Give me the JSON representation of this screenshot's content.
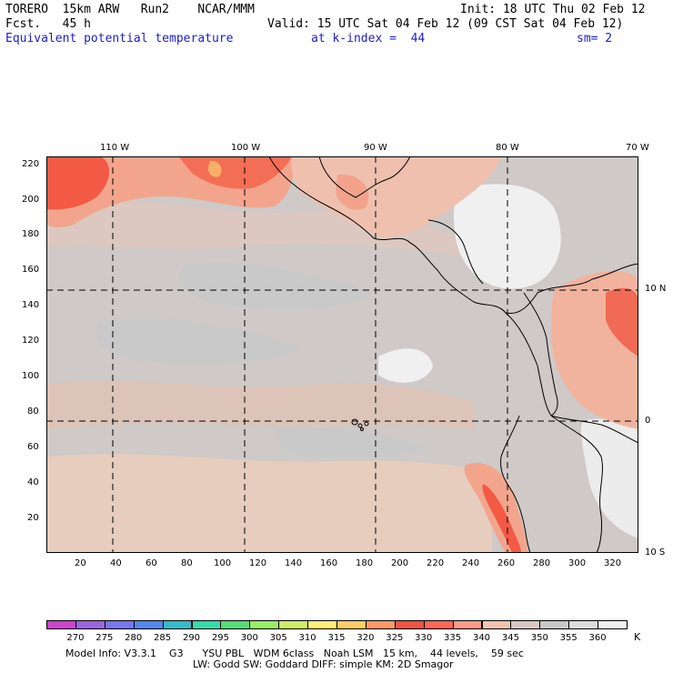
{
  "header": {
    "model": "TORERO  15km ARW   Run2    NCAR/MMM",
    "init": "Init: 18 UTC Thu 02 Feb 12",
    "fcst": "Fcst.   45 h",
    "valid": "Valid: 15 UTC Sat 04 Feb 12 (09 CST Sat 04 Feb 12)",
    "field": "Equivalent potential temperature",
    "kindex": "at k-index =  44",
    "sm": "sm= 2"
  },
  "top_axis": [
    "110 W",
    "100 W",
    "90 W",
    "80 W",
    "70 W"
  ],
  "right_axis": [
    "10 N",
    "0",
    "10 S"
  ],
  "left_axis": [
    "220",
    "200",
    "180",
    "160",
    "140",
    "120",
    "100",
    "80",
    "60",
    "40",
    "20"
  ],
  "bottom_axis": [
    "20",
    "40",
    "60",
    "80",
    "100",
    "120",
    "140",
    "160",
    "180",
    "200",
    "220",
    "240",
    "260",
    "280",
    "300",
    "320"
  ],
  "colorbar": {
    "colors": [
      "#cc44cc",
      "#9966dd",
      "#7777ee",
      "#5588ee",
      "#33bbcc",
      "#33ddaa",
      "#55dd77",
      "#99ee66",
      "#ccee66",
      "#ffee77",
      "#ffcc66",
      "#ff9966",
      "#ee5544",
      "#ff6655",
      "#ff9988",
      "#f2c4b0",
      "#d8c8c4",
      "#c8c8c8",
      "#dddddd",
      "#f0f0f0"
    ],
    "labels": [
      "270",
      "275",
      "280",
      "285",
      "290",
      "295",
      "300",
      "305",
      "310",
      "315",
      "320",
      "325",
      "330",
      "335",
      "340",
      "345",
      "350",
      "355",
      "360"
    ],
    "unit": "K"
  },
  "footer": {
    "line1": "Model Info: V3.3.1    G3      YSU PBL   WDM 6class   Noah LSM   15 km,    44 levels,    59 sec",
    "line2": "LW: Godd SW: Goddard DIFF: simple KM: 2D Smagor"
  }
}
